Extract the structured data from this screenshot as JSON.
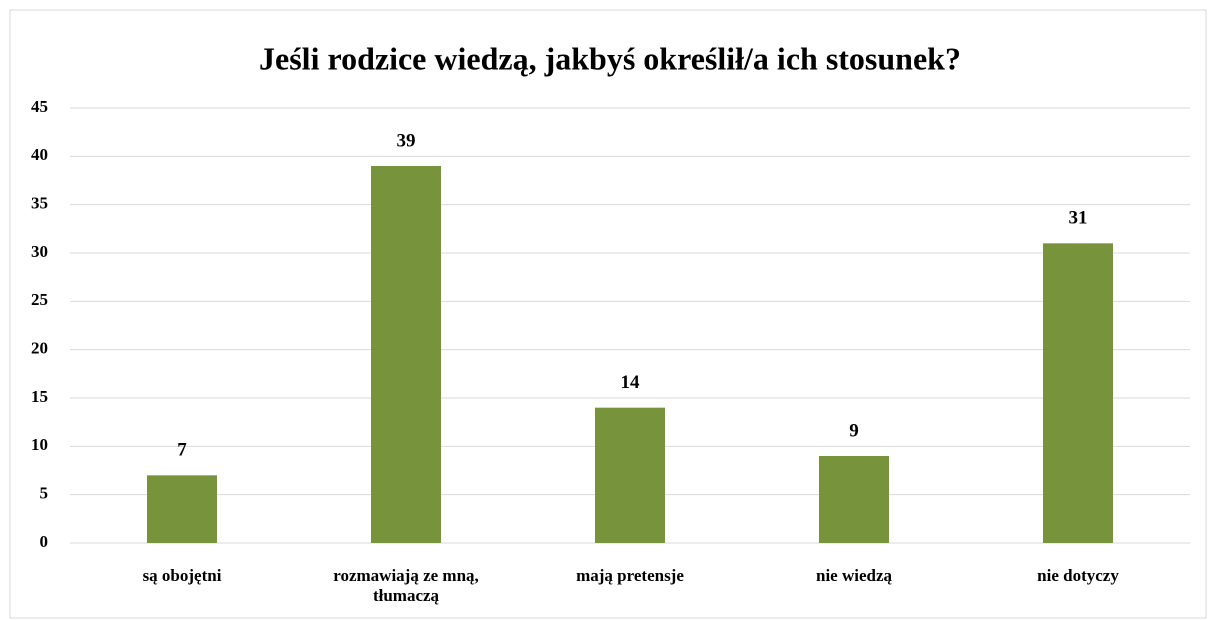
{
  "chart_data": {
    "type": "bar",
    "title": "Jeśli rodzice wiedzą, jakbyś określił/a ich stosunek?",
    "categories": [
      "są obojętni",
      "rozmawiają ze mną, tłumaczą",
      "mają pretensje",
      "nie wiedzą",
      "nie dotyczy"
    ],
    "values": [
      7,
      39,
      14,
      9,
      31
    ],
    "color": "#77933c",
    "ylim": [
      0,
      45
    ],
    "yticks": [
      0,
      5,
      10,
      15,
      20,
      25,
      30,
      35,
      40,
      45
    ],
    "grid": true
  }
}
